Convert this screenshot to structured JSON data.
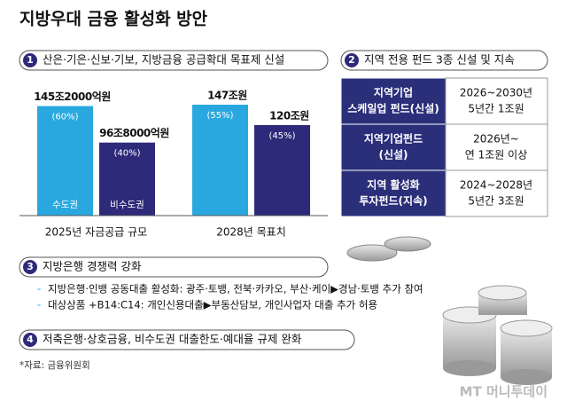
{
  "title": "지방우대 금융 활성화 방안",
  "section1": {
    "number": "1",
    "heading": "산은·기은·신보·기보, 지방금융 공급확대 목표제 신설"
  },
  "chart_data": {
    "type": "bar",
    "categories": [
      "2025년 자금공급 규모",
      "2028년 목표치"
    ],
    "series": [
      {
        "name": "수도권",
        "color": "#29a8e0",
        "values": [
          145.2,
          147
        ],
        "value_labels": [
          "145조2000억원",
          "147조원"
        ],
        "share_labels": [
          "(60%)",
          "(55%)"
        ]
      },
      {
        "name": "비수도권",
        "color": "#2e2a7a",
        "values": [
          96.8,
          120
        ],
        "value_labels": [
          "96조8000억원",
          "120조원"
        ],
        "share_labels": [
          "(40%)",
          "(45%)"
        ]
      }
    ]
  },
  "section2": {
    "number": "2",
    "heading": "지역 전용 펀드 3종 신설 및 지속",
    "table": {
      "rows": [
        {
          "label": [
            "지역기업",
            "스케일업 펀드(신설)"
          ],
          "detail": [
            "2026~2030년",
            "5년간 1조원"
          ]
        },
        {
          "label": [
            "지역기업펀드",
            "(신설)"
          ],
          "detail": [
            "2026년~",
            "연 1조원 이상"
          ]
        },
        {
          "label": [
            "지역 활성화",
            "투자펀드(지속)"
          ],
          "detail": [
            "2024~2028년",
            "5년간 3조원"
          ]
        }
      ]
    }
  },
  "section3": {
    "number": "3",
    "heading": "지방은행 경쟁력 강화",
    "items": [
      "지방은행·인뱅 공동대출 활성화: 광주·토뱅, 전북·카카오, 부산·케이▶경남·토뱅 추가 참여",
      "대상상품 +B14:C14: 개인신용대출▶부동산담보, 개인사업자 대출 추가 허용"
    ]
  },
  "section4": {
    "number": "4",
    "heading": "저축은행·상호금융, 비수도권 대출한도·예대율 규제 완화"
  },
  "source": "*자료: 금융위원회",
  "logo": "MT 머니투데이"
}
